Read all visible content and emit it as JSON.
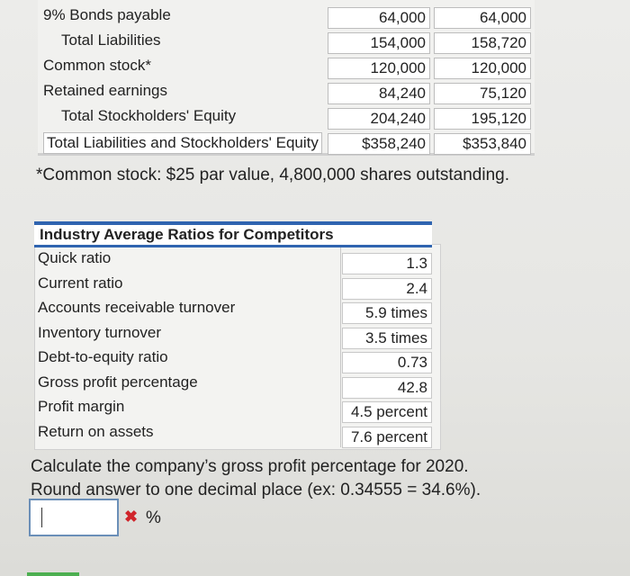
{
  "balance_sheet": {
    "rows": [
      {
        "label": "9% Bonds payable",
        "v1": "64,000",
        "v2": "64,000",
        "indent": false,
        "total": false
      },
      {
        "label": "Total Liabilities",
        "v1": "154,000",
        "v2": "158,720",
        "indent": true,
        "total": false
      },
      {
        "label": "Common stock*",
        "v1": "120,000",
        "v2": "120,000",
        "indent": false,
        "total": false
      },
      {
        "label": "Retained earnings",
        "v1": "84,240",
        "v2": "75,120",
        "indent": false,
        "total": false
      },
      {
        "label": "Total Stockholders' Equity",
        "v1": "204,240",
        "v2": "195,120",
        "indent": true,
        "total": false
      },
      {
        "label": "Total Liabilities and Stockholders' Equity",
        "v1": "$358,240",
        "v2": "$353,840",
        "indent": false,
        "total": true
      }
    ],
    "footnote": "*Common stock: $25 par value, 4,800,000 shares outstanding."
  },
  "ratios": {
    "title": "Industry Average Ratios for Competitors",
    "rows": [
      {
        "label": "Quick ratio",
        "value": "1.3"
      },
      {
        "label": "Current ratio",
        "value": "2.4"
      },
      {
        "label": "Accounts receivable turnover",
        "value": "5.9 times"
      },
      {
        "label": "Inventory turnover",
        "value": "3.5 times"
      },
      {
        "label": "Debt-to-equity ratio",
        "value": "0.73"
      },
      {
        "label": "Gross profit percentage",
        "value": "42.8 percent"
      },
      {
        "label": "Profit margin",
        "value": "4.5 percent"
      },
      {
        "label": "Return on assets",
        "value": "7.6 percent"
      }
    ]
  },
  "question": {
    "line1": "Calculate the company’s gross profit percentage for 2020.",
    "line2": "Round answer to one decimal place (ex: 0.34555 = 34.6%).",
    "answer_value": "",
    "wrong_mark": "✖",
    "unit": "%"
  },
  "colors": {
    "accent": "#2f64b0",
    "error": "#d0252b",
    "progress": "#4caf50"
  }
}
